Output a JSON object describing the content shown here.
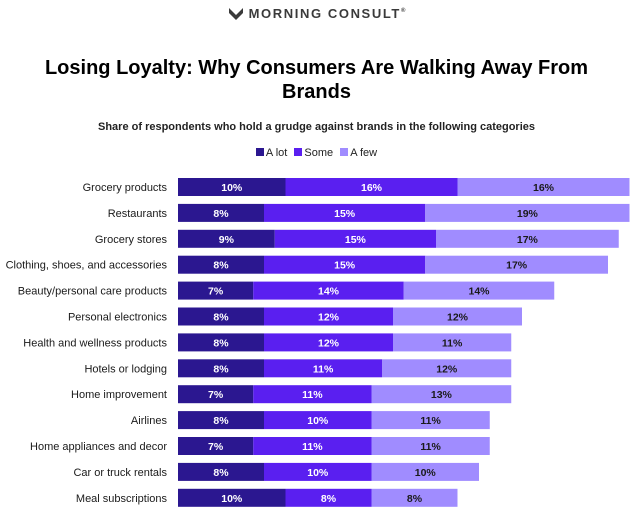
{
  "header": {
    "brand": "MORNING CONSULT",
    "title": "Losing Loyalty: Why Consumers Are Walking Away From Brands",
    "subtitle": "Share of respondents who hold a grudge against brands in the following categories"
  },
  "colors": {
    "a_lot": "#2b1790",
    "some": "#5a1ff0",
    "a_few": "#a08cff"
  },
  "chart_data": {
    "type": "bar",
    "orientation": "horizontal",
    "stacked": true,
    "title": "Losing Loyalty: Why Consumers Are Walking Away From Brands",
    "subtitle": "Share of respondents who hold a grudge against brands in the following categories",
    "legend_position": "top",
    "grid": false,
    "categories": [
      "Grocery products",
      "Restaurants",
      "Grocery stores",
      "Clothing, shoes, and accessories",
      "Beauty/personal care products",
      "Personal electronics",
      "Health and wellness products",
      "Hotels or lodging",
      "Home improvement",
      "Airlines",
      "Home appliances and decor",
      "Car or truck rentals",
      "Meal subscriptions"
    ],
    "series": [
      {
        "name": "A lot",
        "color": "#2b1790",
        "values": [
          10,
          8,
          9,
          8,
          7,
          8,
          8,
          8,
          7,
          8,
          7,
          8,
          10
        ]
      },
      {
        "name": "Some",
        "color": "#5a1ff0",
        "values": [
          16,
          15,
          15,
          15,
          14,
          12,
          12,
          11,
          11,
          10,
          11,
          10,
          8
        ]
      },
      {
        "name": "A few",
        "color": "#a08cff",
        "values": [
          16,
          19,
          17,
          17,
          14,
          12,
          11,
          12,
          13,
          11,
          11,
          10,
          8
        ]
      }
    ],
    "value_suffix": "%"
  }
}
